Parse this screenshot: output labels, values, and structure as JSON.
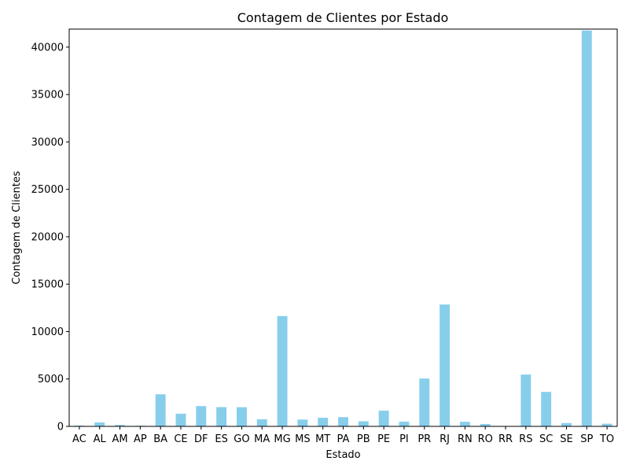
{
  "chart_data": {
    "type": "bar",
    "title": "Contagem de Clientes por Estado",
    "xlabel": "Estado",
    "ylabel": "Contagem de Clientes",
    "categories": [
      "AC",
      "AL",
      "AM",
      "AP",
      "BA",
      "CE",
      "DF",
      "ES",
      "GO",
      "MA",
      "MG",
      "MS",
      "MT",
      "PA",
      "PB",
      "PE",
      "PI",
      "PR",
      "RJ",
      "RN",
      "RO",
      "RR",
      "RS",
      "SC",
      "SE",
      "SP",
      "TO"
    ],
    "values": [
      81,
      413,
      148,
      68,
      3380,
      1336,
      2140,
      2033,
      2020,
      747,
      11635,
      715,
      907,
      975,
      536,
      1652,
      495,
      5045,
      12852,
      485,
      253,
      46,
      5466,
      3637,
      350,
      41746,
      280
    ],
    "ylim": [
      0,
      41900
    ],
    "yticks": [
      0,
      5000,
      10000,
      15000,
      20000,
      25000,
      30000,
      35000,
      40000
    ],
    "bar_color": "#87ceeb",
    "grid": false
  }
}
